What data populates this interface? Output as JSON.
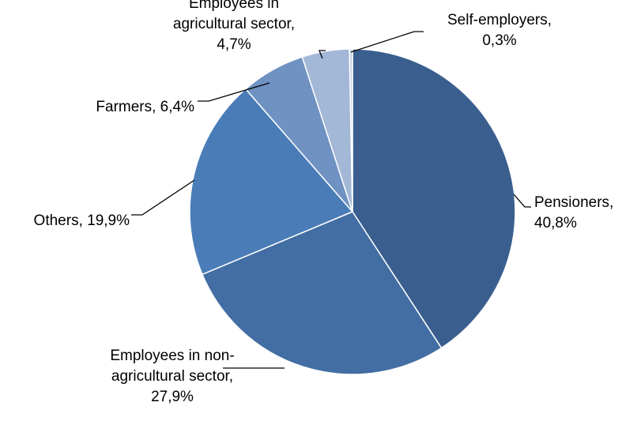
{
  "chart_data": {
    "type": "pie",
    "title": "",
    "slices": [
      {
        "name": "Pensioners",
        "value": 40.8,
        "label_lines": [
          "Pensioners,",
          "40,8%"
        ],
        "color": "#3a5f8f"
      },
      {
        "name": "Employees in non-agricultural sector",
        "value": 27.9,
        "label_lines": [
          "Employees in non-",
          "agricultural sector,",
          "27,9%"
        ],
        "color": "#426ea3"
      },
      {
        "name": "Others",
        "value": 19.9,
        "label_lines": [
          "Others, 19,9%"
        ],
        "color": "#4a7db8"
      },
      {
        "name": "Farmers",
        "value": 6.4,
        "label_lines": [
          "Farmers, 6,4%"
        ],
        "color": "#6f92c2"
      },
      {
        "name": "Employees in agricultural sector",
        "value": 4.7,
        "label_lines": [
          "Employees in",
          "agricultural sector,",
          "4,7%"
        ],
        "color": "#a3b7d7"
      },
      {
        "name": "Self-employers",
        "value": 0.3,
        "label_lines": [
          "Self-employers,",
          "0,3%"
        ],
        "color": "#c7d3e6"
      }
    ]
  }
}
